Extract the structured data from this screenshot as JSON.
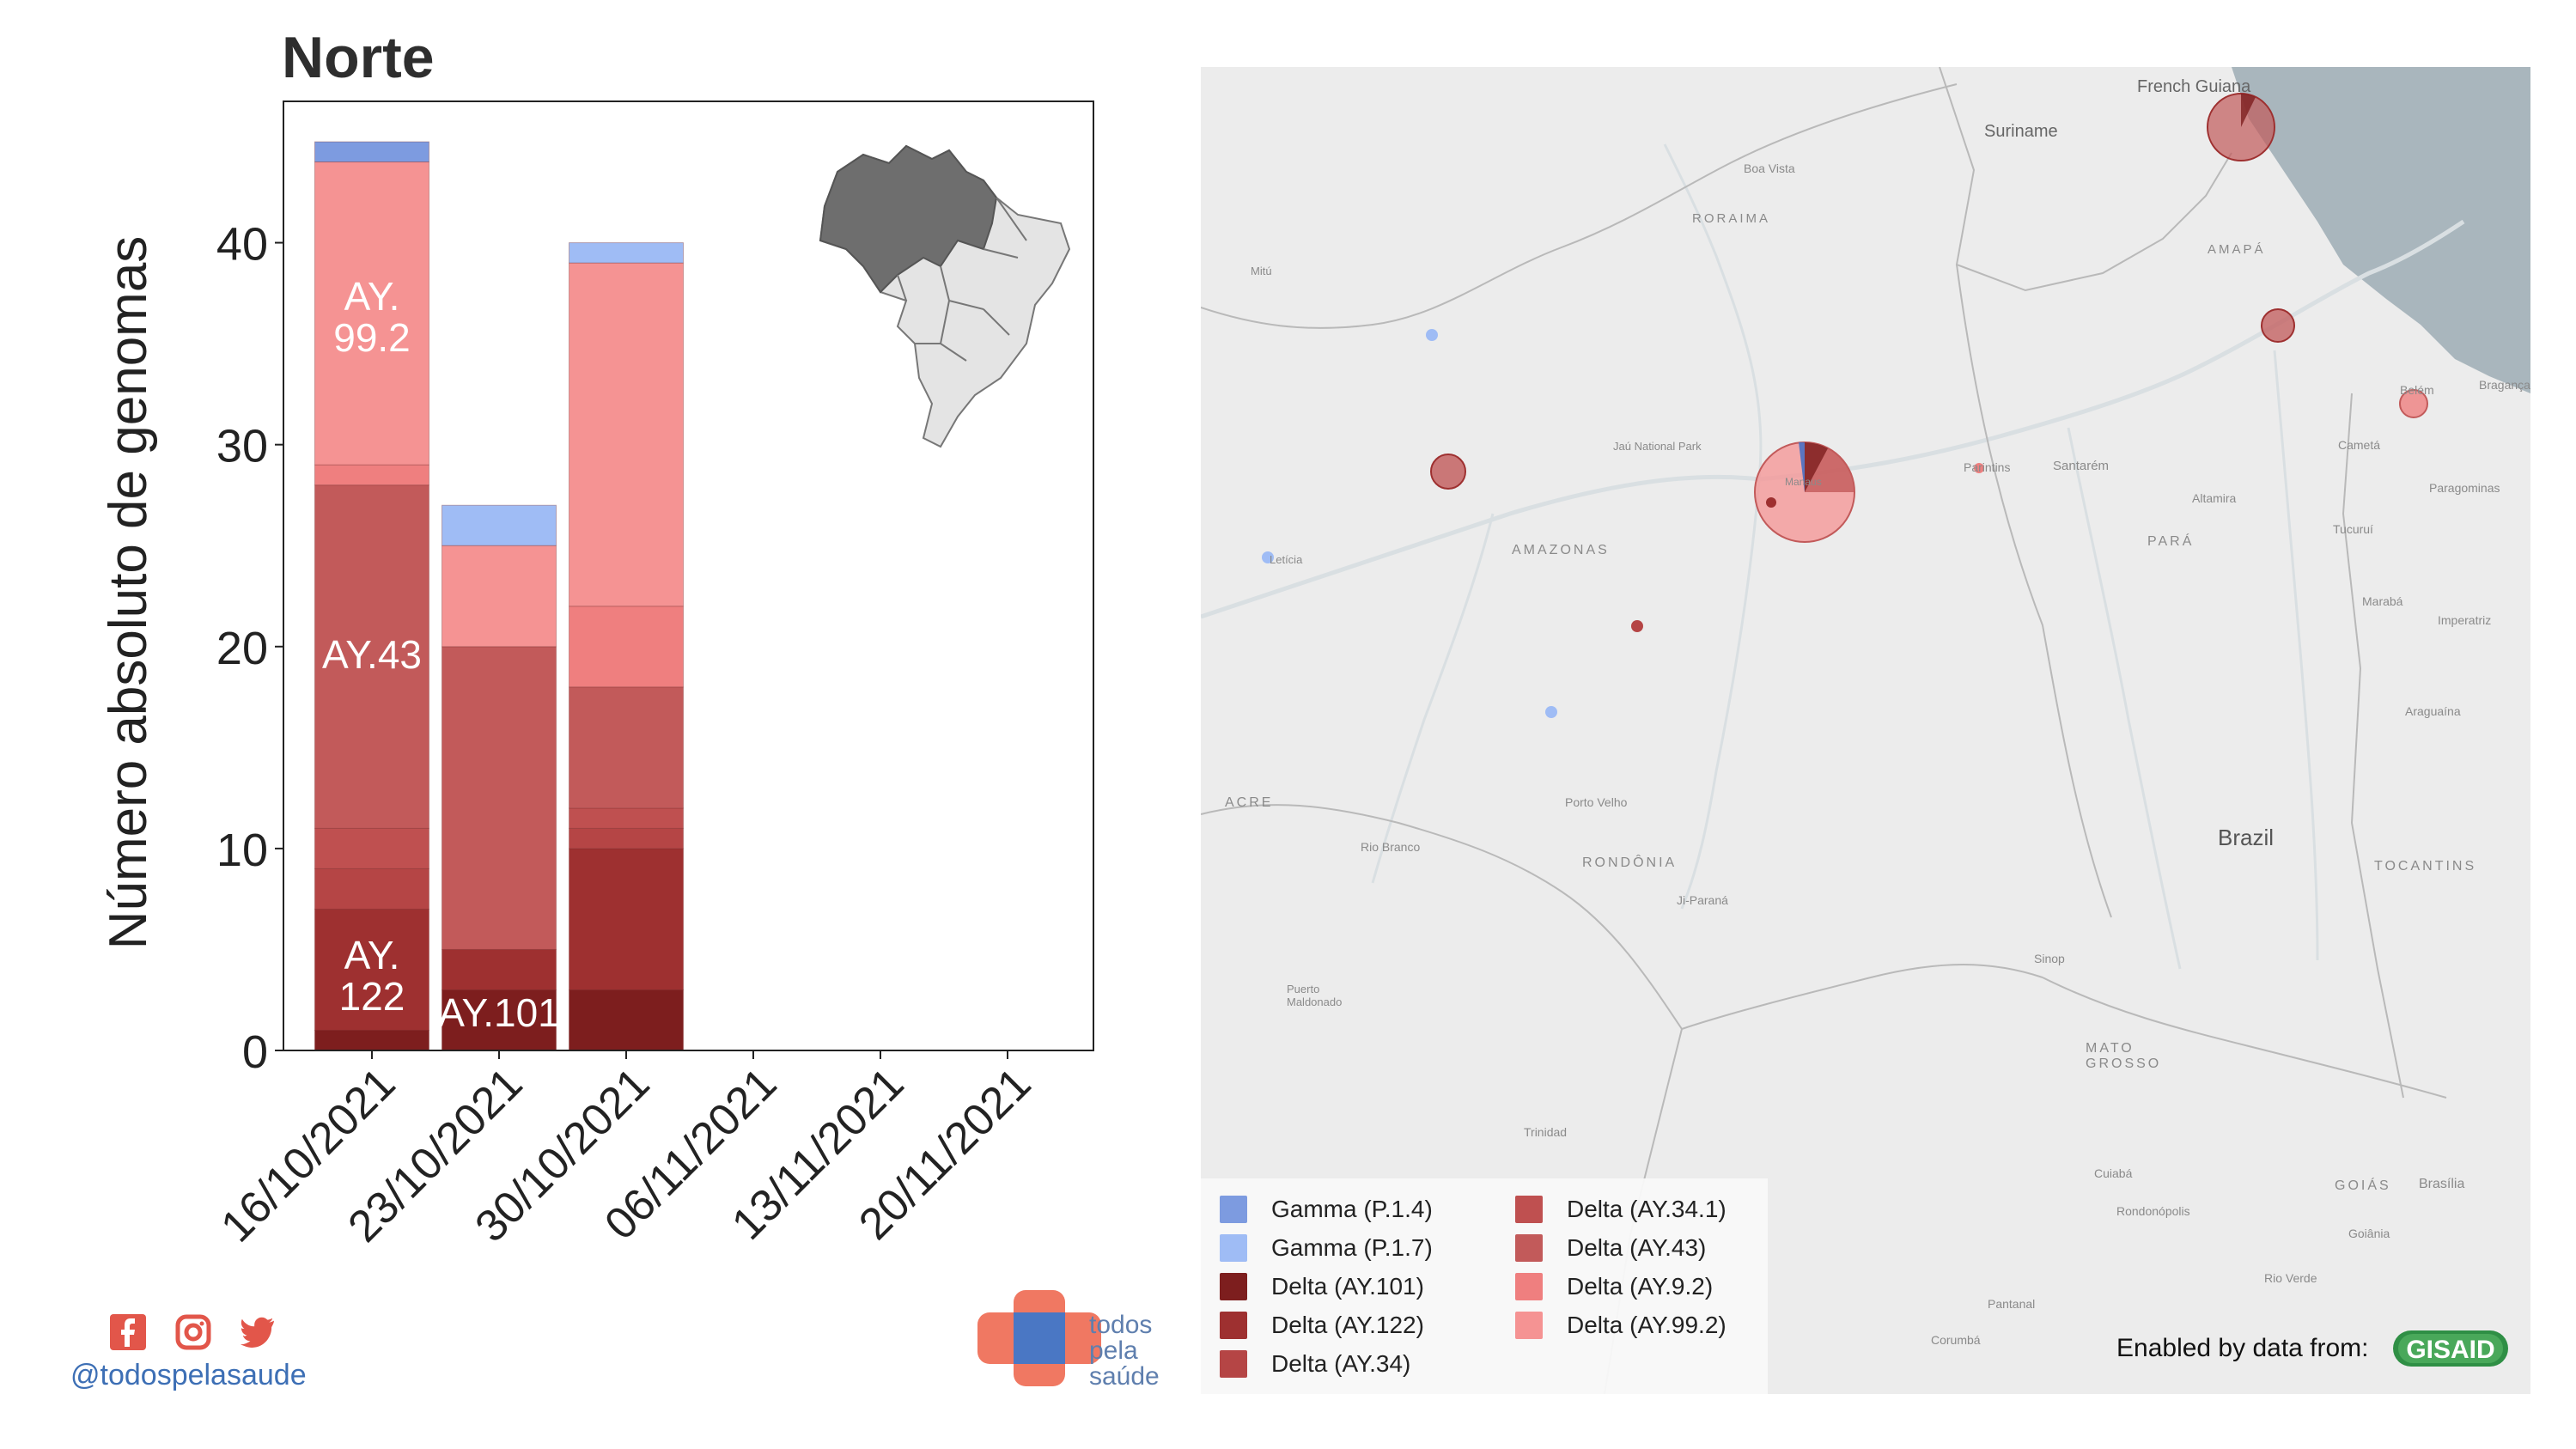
{
  "title": "Norte",
  "chart_data": {
    "type": "bar",
    "stacked": true,
    "ylabel": "Número absoluto de genomas",
    "ylim": [
      0,
      47
    ],
    "yticks": [
      0,
      10,
      20,
      30,
      40
    ],
    "categories": [
      "16/10/2021",
      "23/10/2021",
      "30/10/2021",
      "06/11/2021",
      "13/11/2021",
      "20/11/2021"
    ],
    "series": [
      {
        "name": "Delta (AY.101)",
        "color": "#7d1e1e",
        "values": [
          1,
          3,
          3,
          0,
          0,
          0
        ]
      },
      {
        "name": "Delta (AY.122)",
        "color": "#9e3030",
        "values": [
          6,
          2,
          7,
          0,
          0,
          0
        ]
      },
      {
        "name": "Delta (AY.34)",
        "color": "#b54545",
        "values": [
          2,
          0,
          1,
          0,
          0,
          0
        ]
      },
      {
        "name": "Delta (AY.34.1)",
        "color": "#bf5050",
        "values": [
          2,
          0,
          1,
          0,
          0,
          0
        ]
      },
      {
        "name": "Delta (AY.43)",
        "color": "#c25a5a",
        "values": [
          17,
          15,
          6,
          0,
          0,
          0
        ]
      },
      {
        "name": "Delta (AY.9.2)",
        "color": "#ef7f7f",
        "values": [
          1,
          0,
          4,
          0,
          0,
          0
        ]
      },
      {
        "name": "Delta (AY.99.2)",
        "color": "#f59393",
        "values": [
          15,
          5,
          17,
          0,
          0,
          0
        ]
      },
      {
        "name": "Gamma (P.1.4)",
        "color": "#7d9be0",
        "values": [
          1,
          0,
          0,
          0,
          0,
          0
        ]
      },
      {
        "name": "Gamma (P.1.7)",
        "color": "#9fbcf5",
        "values": [
          0,
          2,
          1,
          0,
          0,
          0
        ]
      }
    ],
    "annotations": [
      {
        "text": [
          "AY.",
          "99.2"
        ],
        "category": "16/10/2021"
      },
      {
        "text": [
          "AY.43"
        ],
        "category": "16/10/2021"
      },
      {
        "text": [
          "AY.",
          "122"
        ],
        "category": "16/10/2021"
      },
      {
        "text": [
          "AY.101"
        ],
        "category": "23/10/2021"
      }
    ],
    "grid": false
  },
  "map": {
    "labels": [
      "French Guiana",
      "Suriname",
      "Boa Vista",
      "RORAIMA",
      "AMAPÁ",
      "AMAZONAS",
      "PARÁ",
      "Santarém",
      "Parintins",
      "Altamira",
      "Belém",
      "Bragança",
      "Cametá",
      "Paragominas",
      "Tucuruí",
      "Marabá",
      "Imperatriz",
      "Araguaína",
      "ACRE",
      "Rio Branco",
      "RONDÔNIA",
      "Porto Velho",
      "Ji-Paraná",
      "Brazil",
      "TOCANTINS",
      "MATO GROSSO",
      "Sinop",
      "Trinidad",
      "Cuiabá",
      "GOIÁS",
      "Brasília",
      "Goiânia",
      "Rio Verde",
      "Corumbá",
      "Pantanal",
      "Rondonópolis",
      "Puerto Maldonado",
      "Jaú National Park",
      "Mitú",
      "Manaus",
      "Letícia"
    ],
    "points": [
      {
        "name": "french-guiana-pie",
        "color": "#c25a5a"
      },
      {
        "name": "amapa-pie",
        "color": "#c25a5a"
      },
      {
        "name": "belem-pie",
        "color": "#ef7f7f"
      },
      {
        "name": "manaus-pie",
        "color": "#f59393"
      },
      {
        "name": "west-amazonas-pie",
        "color": "#c25a5a"
      },
      {
        "name": "central-amazonas-point",
        "color": "#b54545"
      },
      {
        "name": "parintins-point",
        "color": "#ef7f7f"
      },
      {
        "name": "gamma-point-north",
        "color": "#9fbcf5"
      },
      {
        "name": "gamma-point-south",
        "color": "#9fbcf5"
      },
      {
        "name": "leticia-point",
        "color": "#9fbcf5"
      }
    ]
  },
  "legend": {
    "items": [
      {
        "label": "Gamma (P.1.4)",
        "color": "#7d9be0"
      },
      {
        "label": "Gamma (P.1.7)",
        "color": "#9fbcf5"
      },
      {
        "label": "Delta (AY.101)",
        "color": "#7d1e1e"
      },
      {
        "label": "Delta (AY.122)",
        "color": "#9e3030"
      },
      {
        "label": "Delta (AY.34)",
        "color": "#b54545"
      },
      {
        "label": "Delta (AY.34.1)",
        "color": "#bf5050"
      },
      {
        "label": "Delta (AY.43)",
        "color": "#c25a5a"
      },
      {
        "label": "Delta (AY.9.2)",
        "color": "#ef7f7f"
      },
      {
        "label": "Delta (AY.99.2)",
        "color": "#f59393"
      }
    ]
  },
  "credit": "Enabled by data from:",
  "gisaid_logo_text": "GISAID",
  "social": {
    "handle": "@todospelasaude",
    "icons": [
      "facebook-icon",
      "instagram-icon",
      "twitter-icon"
    ]
  },
  "brand": {
    "line1": "todos",
    "line2": "pela",
    "line3": "saúde"
  }
}
